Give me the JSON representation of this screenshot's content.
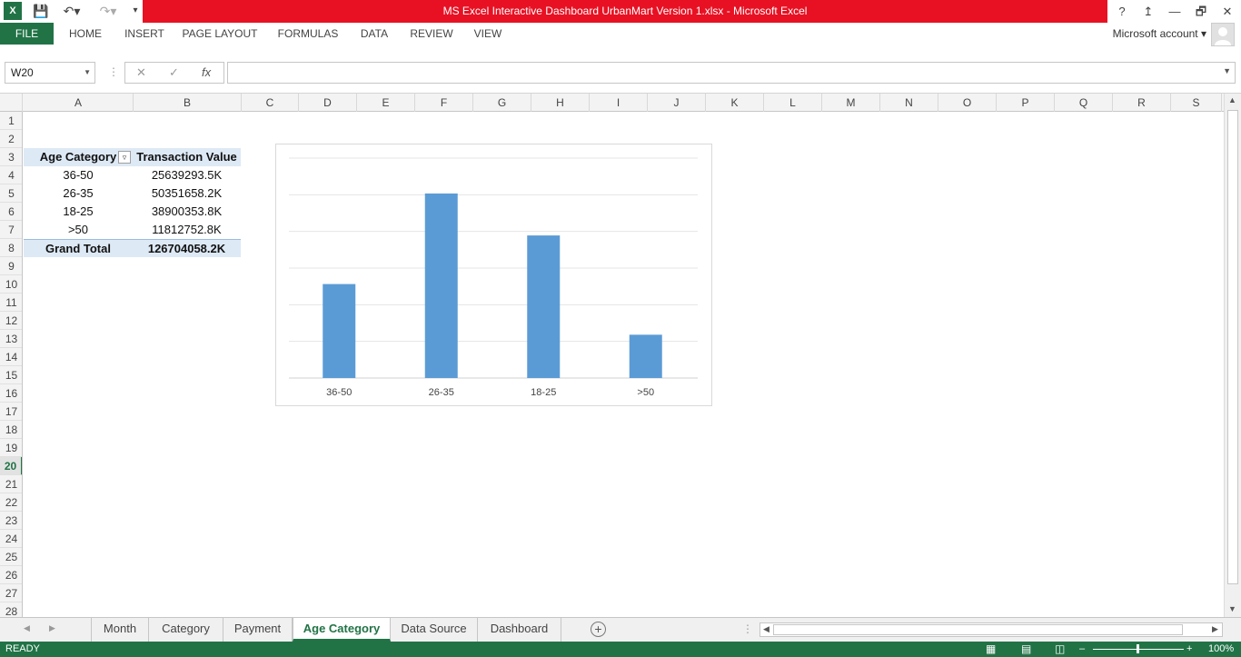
{
  "window": {
    "title": "MS Excel Interactive Dashboard UrbanMart Version 1.xlsx -  Microsoft Excel",
    "help": "?",
    "restore": "🗗",
    "minimize": "—",
    "close": "✕"
  },
  "ribbon": {
    "tabs": [
      "FILE",
      "HOME",
      "INSERT",
      "PAGE LAYOUT",
      "FORMULAS",
      "DATA",
      "REVIEW",
      "VIEW"
    ],
    "account": "Microsoft account"
  },
  "formula_bar": {
    "name_box": "W20",
    "formula": ""
  },
  "columns": [
    "A",
    "B",
    "C",
    "D",
    "E",
    "F",
    "G",
    "H",
    "I",
    "J",
    "K",
    "L",
    "M",
    "N",
    "O",
    "P",
    "Q",
    "R",
    "S"
  ],
  "rows": [
    "1",
    "2",
    "3",
    "4",
    "5",
    "6",
    "7",
    "8",
    "9",
    "10",
    "11",
    "12",
    "13",
    "14",
    "15",
    "16",
    "17",
    "18",
    "19",
    "20",
    "21",
    "22",
    "23",
    "24",
    "25",
    "26",
    "27",
    "28"
  ],
  "active_row": "20",
  "pivot": {
    "header_a": "Age Category",
    "header_b": "Transaction Value",
    "rows": [
      {
        "label": "36-50",
        "value": "25639293.5K"
      },
      {
        "label": "26-35",
        "value": "50351658.2K"
      },
      {
        "label": "18-25",
        "value": "38900353.8K"
      },
      {
        "label": ">50",
        "value": "11812752.8K"
      }
    ],
    "total_label": "Grand Total",
    "total_value": "126704058.2K"
  },
  "chart_data": {
    "type": "bar",
    "categories": [
      "36-50",
      "26-35",
      "18-25",
      ">50"
    ],
    "values": [
      25639293.5,
      50351658.2,
      38900353.8,
      11812752.8
    ],
    "unit": "K",
    "title": "",
    "xlabel": "",
    "ylabel": "",
    "ylim": [
      0,
      60000000
    ],
    "grid": true,
    "legend": "none",
    "bar_color": "#5b9bd5"
  },
  "sheets": {
    "tabs": [
      "Month",
      "Category",
      "Payment",
      "Age Category",
      "Data Source",
      "Dashboard"
    ],
    "active": "Age Category",
    "add": "+"
  },
  "status": {
    "ready": "READY",
    "zoom": "100%"
  }
}
